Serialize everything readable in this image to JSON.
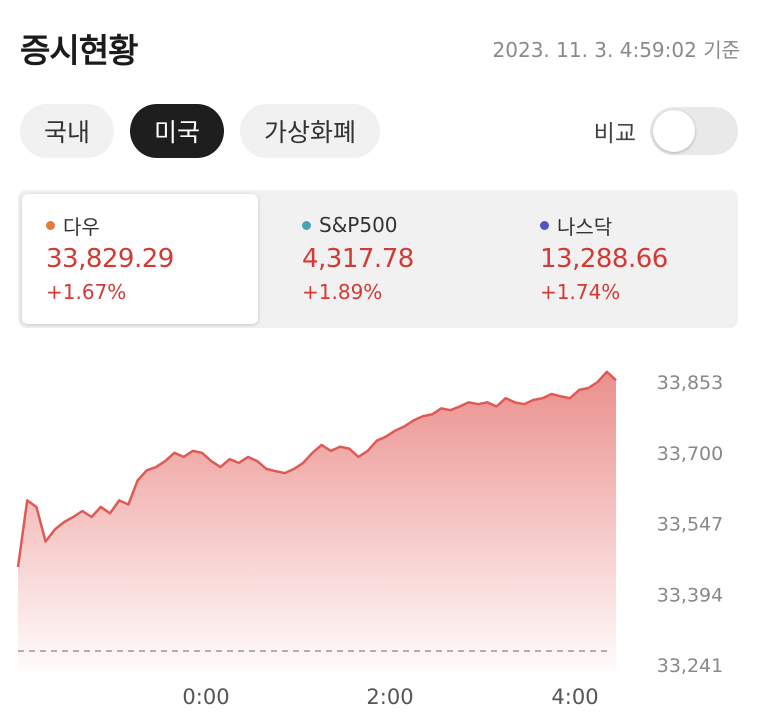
{
  "header": {
    "title": "증시현황",
    "timestamp": "2023. 11. 3. 4:59:02 기준"
  },
  "tabs": [
    {
      "label": "국내",
      "active": false
    },
    {
      "label": "미국",
      "active": true
    },
    {
      "label": "가상화폐",
      "active": false
    }
  ],
  "compare": {
    "label": "비교",
    "on": false
  },
  "indices": [
    {
      "name": "다우",
      "value": "33,829.29",
      "change": "+1.67%",
      "color": "#e07b3c",
      "selected": true
    },
    {
      "name": "S&P500",
      "value": "4,317.78",
      "change": "+1.89%",
      "color": "#4aa3b5",
      "selected": false
    },
    {
      "name": "나스닥",
      "value": "13,288.66",
      "change": "+1.74%",
      "color": "#5555c0",
      "selected": false
    }
  ],
  "chart_data": {
    "type": "area",
    "series_color": "#e05a55",
    "y_ticks": [
      "33,853",
      "33,700",
      "33,547",
      "33,394",
      "33,241"
    ],
    "ylim": [
      33241,
      33853
    ],
    "x_ticks": [
      {
        "label": "0:00",
        "t": 0.35
      },
      {
        "label": "2:00",
        "t": 0.685
      },
      {
        "label": "4:00",
        "t": 0.98
      }
    ],
    "baseline": 33241,
    "values": [
      33453,
      33597,
      33583,
      33508,
      33534,
      33550,
      33561,
      33574,
      33561,
      33583,
      33569,
      33597,
      33588,
      33640,
      33662,
      33669,
      33682,
      33700,
      33691,
      33704,
      33700,
      33682,
      33669,
      33686,
      33678,
      33691,
      33682,
      33665,
      33660,
      33656,
      33665,
      33678,
      33700,
      33717,
      33704,
      33713,
      33709,
      33691,
      33704,
      33726,
      33735,
      33748,
      33757,
      33770,
      33779,
      33783,
      33796,
      33792,
      33800,
      33809,
      33805,
      33809,
      33800,
      33818,
      33809,
      33805,
      33814,
      33818,
      33827,
      33822,
      33818,
      33836,
      33840,
      33853,
      33875,
      33857
    ]
  }
}
